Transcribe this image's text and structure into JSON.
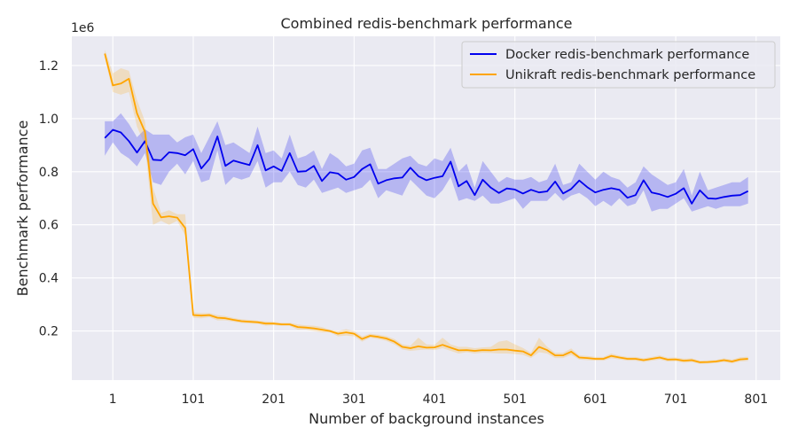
{
  "chart_data": {
    "type": "line",
    "title": "Combined redis-benchmark performance",
    "xlabel": "Number of background instances",
    "ylabel": "Benchmark performance",
    "y_multiplier_label": "1e6",
    "x_ticks": [
      1,
      101,
      201,
      301,
      401,
      501,
      601,
      701,
      801
    ],
    "y_ticks": [
      0.2,
      0.4,
      0.6,
      0.8,
      1.0,
      1.2
    ],
    "y_tick_labels": [
      "0.2",
      "0.4",
      "0.6",
      "0.8",
      "1.0",
      "1.2"
    ],
    "xlim": [
      -50,
      831
    ],
    "ylim": [
      0.015,
      1.31
    ],
    "grid": true,
    "legend_position": "top-right",
    "x": [
      -9,
      1,
      11,
      21,
      31,
      41,
      51,
      61,
      71,
      81,
      91,
      101,
      111,
      121,
      131,
      141,
      151,
      161,
      171,
      181,
      191,
      201,
      211,
      221,
      231,
      241,
      251,
      261,
      271,
      281,
      291,
      301,
      311,
      321,
      331,
      341,
      351,
      361,
      371,
      381,
      391,
      401,
      411,
      421,
      431,
      441,
      451,
      461,
      471,
      481,
      491,
      501,
      511,
      521,
      531,
      541,
      551,
      561,
      571,
      581,
      591,
      601,
      611,
      621,
      631,
      641,
      651,
      661,
      671,
      681,
      691,
      701,
      711,
      721,
      731,
      741,
      751,
      761,
      771,
      781,
      791
    ],
    "series": [
      {
        "name": "Docker redis-benchmark performance",
        "color": "#0000ee",
        "values": [
          0.927,
          0.958,
          0.948,
          0.915,
          0.872,
          0.915,
          0.845,
          0.843,
          0.873,
          0.87,
          0.862,
          0.885,
          0.812,
          0.848,
          0.933,
          0.822,
          0.842,
          0.833,
          0.825,
          0.9,
          0.805,
          0.82,
          0.803,
          0.87,
          0.8,
          0.802,
          0.822,
          0.765,
          0.798,
          0.793,
          0.77,
          0.78,
          0.81,
          0.828,
          0.755,
          0.768,
          0.775,
          0.778,
          0.815,
          0.783,
          0.768,
          0.777,
          0.783,
          0.838,
          0.745,
          0.765,
          0.712,
          0.77,
          0.74,
          0.72,
          0.737,
          0.733,
          0.718,
          0.732,
          0.722,
          0.726,
          0.763,
          0.718,
          0.735,
          0.767,
          0.742,
          0.722,
          0.732,
          0.738,
          0.732,
          0.702,
          0.712,
          0.768,
          0.722,
          0.715,
          0.705,
          0.717,
          0.738,
          0.68,
          0.73,
          0.7,
          0.698,
          0.705,
          0.71,
          0.712,
          0.727
        ],
        "lower": [
          0.86,
          0.91,
          0.87,
          0.85,
          0.82,
          0.87,
          0.76,
          0.75,
          0.8,
          0.83,
          0.79,
          0.84,
          0.76,
          0.77,
          0.88,
          0.75,
          0.78,
          0.77,
          0.78,
          0.84,
          0.74,
          0.76,
          0.76,
          0.8,
          0.75,
          0.74,
          0.77,
          0.72,
          0.73,
          0.74,
          0.72,
          0.73,
          0.74,
          0.77,
          0.7,
          0.73,
          0.72,
          0.71,
          0.77,
          0.74,
          0.71,
          0.7,
          0.73,
          0.78,
          0.69,
          0.7,
          0.69,
          0.71,
          0.68,
          0.68,
          0.69,
          0.7,
          0.66,
          0.69,
          0.69,
          0.69,
          0.72,
          0.69,
          0.71,
          0.72,
          0.7,
          0.67,
          0.69,
          0.67,
          0.7,
          0.67,
          0.68,
          0.73,
          0.65,
          0.66,
          0.66,
          0.68,
          0.7,
          0.65,
          0.66,
          0.67,
          0.66,
          0.67,
          0.67,
          0.67,
          0.68
        ],
        "upper": [
          0.99,
          0.99,
          1.02,
          0.98,
          0.93,
          0.96,
          0.94,
          0.94,
          0.94,
          0.91,
          0.93,
          0.94,
          0.87,
          0.93,
          0.99,
          0.9,
          0.91,
          0.89,
          0.87,
          0.97,
          0.87,
          0.88,
          0.85,
          0.94,
          0.85,
          0.86,
          0.88,
          0.81,
          0.87,
          0.85,
          0.82,
          0.83,
          0.88,
          0.89,
          0.81,
          0.81,
          0.83,
          0.85,
          0.86,
          0.83,
          0.82,
          0.85,
          0.84,
          0.89,
          0.8,
          0.83,
          0.74,
          0.84,
          0.8,
          0.76,
          0.78,
          0.77,
          0.77,
          0.78,
          0.76,
          0.77,
          0.83,
          0.75,
          0.76,
          0.83,
          0.8,
          0.77,
          0.8,
          0.78,
          0.77,
          0.74,
          0.76,
          0.82,
          0.79,
          0.77,
          0.75,
          0.76,
          0.81,
          0.71,
          0.8,
          0.73,
          0.74,
          0.75,
          0.76,
          0.76,
          0.78
        ]
      },
      {
        "name": "Unikraft redis-benchmark performance",
        "color": "#ffa500",
        "values": [
          1.245,
          1.125,
          1.132,
          1.15,
          1.02,
          0.95,
          0.68,
          0.628,
          0.632,
          0.627,
          0.588,
          0.26,
          0.258,
          0.26,
          0.25,
          0.248,
          0.242,
          0.237,
          0.235,
          0.233,
          0.228,
          0.228,
          0.225,
          0.225,
          0.215,
          0.213,
          0.21,
          0.205,
          0.2,
          0.19,
          0.195,
          0.19,
          0.17,
          0.182,
          0.178,
          0.172,
          0.16,
          0.14,
          0.135,
          0.142,
          0.137,
          0.138,
          0.148,
          0.137,
          0.127,
          0.128,
          0.125,
          0.128,
          0.127,
          0.13,
          0.13,
          0.126,
          0.123,
          0.108,
          0.14,
          0.128,
          0.108,
          0.108,
          0.122,
          0.1,
          0.098,
          0.095,
          0.095,
          0.106,
          0.1,
          0.095,
          0.095,
          0.09,
          0.095,
          0.1,
          0.092,
          0.093,
          0.088,
          0.09,
          0.082,
          0.083,
          0.085,
          0.09,
          0.085,
          0.093,
          0.095
        ],
        "lower": [
          1.23,
          1.1,
          1.09,
          1.1,
          0.97,
          0.9,
          0.6,
          0.615,
          0.6,
          0.615,
          0.56,
          0.25,
          0.248,
          0.252,
          0.24,
          0.24,
          0.235,
          0.23,
          0.228,
          0.227,
          0.22,
          0.222,
          0.219,
          0.219,
          0.205,
          0.205,
          0.2,
          0.195,
          0.195,
          0.18,
          0.183,
          0.18,
          0.16,
          0.175,
          0.17,
          0.163,
          0.15,
          0.13,
          0.125,
          0.128,
          0.13,
          0.128,
          0.135,
          0.125,
          0.115,
          0.12,
          0.115,
          0.118,
          0.117,
          0.115,
          0.115,
          0.113,
          0.11,
          0.098,
          0.12,
          0.115,
          0.098,
          0.098,
          0.11,
          0.092,
          0.09,
          0.088,
          0.088,
          0.097,
          0.093,
          0.088,
          0.088,
          0.083,
          0.088,
          0.092,
          0.085,
          0.086,
          0.08,
          0.083,
          0.076,
          0.077,
          0.079,
          0.083,
          0.078,
          0.085,
          0.087
        ],
        "upper": [
          1.26,
          1.17,
          1.19,
          1.18,
          1.07,
          0.99,
          0.74,
          0.645,
          0.655,
          0.64,
          0.64,
          0.27,
          0.268,
          0.268,
          0.26,
          0.256,
          0.249,
          0.244,
          0.242,
          0.239,
          0.236,
          0.234,
          0.231,
          0.231,
          0.225,
          0.221,
          0.22,
          0.215,
          0.205,
          0.2,
          0.207,
          0.2,
          0.18,
          0.19,
          0.186,
          0.181,
          0.17,
          0.15,
          0.145,
          0.175,
          0.15,
          0.148,
          0.175,
          0.15,
          0.14,
          0.14,
          0.135,
          0.138,
          0.14,
          0.16,
          0.165,
          0.15,
          0.136,
          0.118,
          0.175,
          0.141,
          0.118,
          0.118,
          0.134,
          0.108,
          0.106,
          0.102,
          0.102,
          0.115,
          0.107,
          0.102,
          0.102,
          0.097,
          0.102,
          0.108,
          0.099,
          0.1,
          0.096,
          0.097,
          0.088,
          0.089,
          0.091,
          0.097,
          0.092,
          0.101,
          0.103
        ]
      }
    ]
  }
}
